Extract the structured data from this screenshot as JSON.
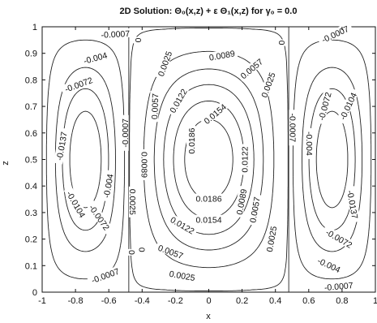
{
  "chart_data": {
    "type": "contour",
    "title": "2D Solution:  Θ₀(x,z) + ε Θ₁(x,z) for γ₀ = 0.0",
    "xlabel": "x",
    "ylabel": "z",
    "xlim": [
      -1,
      1
    ],
    "ylim": [
      0,
      1
    ],
    "grid": false,
    "xticks": [
      "-1",
      "-0.8",
      "-0.6",
      "-0.4",
      "-0.2",
      "0",
      "0.2",
      "0.4",
      "0.6",
      "0.8",
      "1"
    ],
    "yticks": [
      "0",
      "0.1",
      "0.2",
      "0.3",
      "0.4",
      "0.5",
      "0.6",
      "0.7",
      "0.8",
      "0.9",
      "1"
    ],
    "field_model": "sign(u)*0.0137*((sin(pi*|u|)/sin(0.5*pi))*sin(pi*z))^2.5 with u=(1+x)/1.04 for x<-0.48, u=-((x+0.48)/0.96) for |x|<=0.48, u=(1-x)/1.04 for x>0.48 mirrored; center cell peak 0.0186",
    "contour_levels": [
      -0.0137,
      -0.0104,
      -0.0072,
      -0.004,
      -0.0007,
      0,
      0.0025,
      0.0057,
      0.0089,
      0.0122,
      0.0154,
      0.0186
    ],
    "contour_labels": [
      {
        "text": "-0.0007",
        "x": -0.56,
        "z": 0.97,
        "angle": -3
      },
      {
        "text": "-0.004",
        "x": -0.68,
        "z": 0.88,
        "angle": -15
      },
      {
        "text": "-0.0072",
        "x": -0.78,
        "z": 0.78,
        "angle": -20
      },
      {
        "text": "-0.0137",
        "x": -0.88,
        "z": 0.55,
        "angle": -80
      },
      {
        "text": "-0.0104",
        "x": -0.8,
        "z": 0.33,
        "angle": 60
      },
      {
        "text": "-0.0072",
        "x": -0.66,
        "z": 0.28,
        "angle": 55
      },
      {
        "text": "-0.004",
        "x": -0.6,
        "z": 0.4,
        "angle": -80
      },
      {
        "text": "-0.0007",
        "x": -0.5,
        "z": 0.6,
        "angle": -90
      },
      {
        "text": "-0.0007",
        "x": -0.62,
        "z": 0.06,
        "angle": -20
      },
      {
        "text": "0",
        "x": -0.42,
        "z": 0.95,
        "angle": -90
      },
      {
        "text": "0",
        "x": -0.4,
        "z": 0.16,
        "angle": -90
      },
      {
        "text": "0.0025",
        "x": -0.26,
        "z": 0.86,
        "angle": -70
      },
      {
        "text": "0.0057",
        "x": -0.32,
        "z": 0.7,
        "angle": -88
      },
      {
        "text": "0.0122",
        "x": -0.18,
        "z": 0.72,
        "angle": -60
      },
      {
        "text": "0.0186",
        "x": -0.1,
        "z": 0.57,
        "angle": -90
      },
      {
        "text": "0.0154",
        "x": 0.04,
        "z": 0.67,
        "angle": -40
      },
      {
        "text": "0.0089",
        "x": 0.08,
        "z": 0.89,
        "angle": -10
      },
      {
        "text": "0.0057",
        "x": 0.26,
        "z": 0.84,
        "angle": -40
      },
      {
        "text": "0.0025",
        "x": 0.36,
        "z": 0.78,
        "angle": -70
      },
      {
        "text": "0.0122",
        "x": 0.22,
        "z": 0.5,
        "angle": -90
      },
      {
        "text": "0.0089",
        "x": -0.39,
        "z": 0.48,
        "angle": 90
      },
      {
        "text": "0.0025",
        "x": -0.46,
        "z": 0.34,
        "angle": 90
      },
      {
        "text": "0.0186",
        "x": 0.0,
        "z": 0.35,
        "angle": 0
      },
      {
        "text": "0.0154",
        "x": 0.0,
        "z": 0.27,
        "angle": 0
      },
      {
        "text": "0.0122",
        "x": -0.16,
        "z": 0.25,
        "angle": 30
      },
      {
        "text": "0.0089",
        "x": 0.2,
        "z": 0.34,
        "angle": -80
      },
      {
        "text": "0.0057",
        "x": -0.23,
        "z": 0.15,
        "angle": 20
      },
      {
        "text": "0.0057",
        "x": 0.28,
        "z": 0.31,
        "angle": -80
      },
      {
        "text": "0.0025",
        "x": -0.16,
        "z": 0.06,
        "angle": 10
      },
      {
        "text": "0.0025",
        "x": 0.38,
        "z": 0.2,
        "angle": -80
      },
      {
        "text": "0",
        "x": -0.46,
        "z": 0.15,
        "angle": -90
      },
      {
        "text": "0",
        "x": 0.44,
        "z": 0.94,
        "angle": -90
      },
      {
        "text": "-0.0007",
        "x": 0.5,
        "z": 0.62,
        "angle": 90
      },
      {
        "text": "-0.004",
        "x": 0.6,
        "z": 0.56,
        "angle": 90
      },
      {
        "text": "-0.0072",
        "x": 0.7,
        "z": 0.7,
        "angle": -75
      },
      {
        "text": "-0.0104",
        "x": 0.84,
        "z": 0.7,
        "angle": -65
      },
      {
        "text": "-0.0137",
        "x": 0.86,
        "z": 0.33,
        "angle": 80
      },
      {
        "text": "-0.0072",
        "x": 0.78,
        "z": 0.2,
        "angle": 30
      },
      {
        "text": "-0.004",
        "x": 0.72,
        "z": 0.1,
        "angle": 25
      },
      {
        "text": "-0.0007",
        "x": 0.78,
        "z": 0.02,
        "angle": -5
      },
      {
        "text": "-0.0007",
        "x": 0.76,
        "z": 0.97,
        "angle": -25
      }
    ]
  }
}
